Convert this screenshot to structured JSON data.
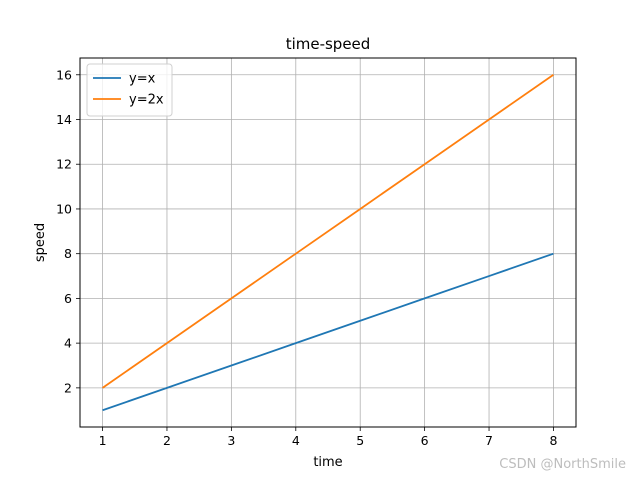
{
  "chart_data": {
    "type": "line",
    "title": "time-speed",
    "xlabel": "time",
    "ylabel": "speed",
    "x": [
      1,
      2,
      3,
      4,
      5,
      6,
      7,
      8
    ],
    "xlim": [
      0.65,
      8.35
    ],
    "ylim": [
      0.25,
      16.75
    ],
    "xticks": [
      1,
      2,
      3,
      4,
      5,
      6,
      7,
      8
    ],
    "yticks": [
      2,
      4,
      6,
      8,
      10,
      12,
      14,
      16
    ],
    "grid": true,
    "legend_position": "top-left",
    "series": [
      {
        "name": "y=x",
        "color": "#1f77b4",
        "values": [
          1,
          2,
          3,
          4,
          5,
          6,
          7,
          8
        ]
      },
      {
        "name": "y=2x",
        "color": "#ff7f0e",
        "values": [
          2,
          4,
          6,
          8,
          10,
          12,
          14,
          16
        ]
      }
    ]
  },
  "watermark": "CSDN @NorthSmile"
}
